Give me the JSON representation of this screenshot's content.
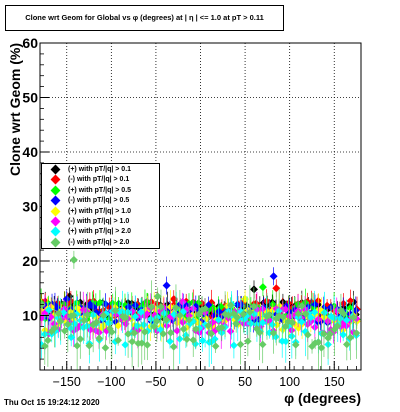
{
  "title": "Clone wrt Geom for Global vs φ (degrees) at | η | <= 1.0 at pT > 0.11",
  "footer": "Thu Oct 15 19:24:12 2020",
  "chart_data": {
    "type": "scatter",
    "title": "Clone wrt Geom for Global vs φ (degrees) at | η | <= 1.0 at pT > 0.11",
    "xlabel": "φ (degrees)",
    "ylabel": "Clone wrt Geom (%)",
    "xlim": [
      -180,
      180
    ],
    "ylim": [
      0,
      60
    ],
    "xticks": [
      -150,
      -100,
      -50,
      0,
      50,
      100,
      150
    ],
    "yticks": [
      0,
      10,
      20,
      30,
      40,
      50,
      60
    ],
    "grid": true,
    "legend_position": "left",
    "series": [
      {
        "name": "(+) with pT/|q| > 0.1",
        "color": "#000000",
        "level": 11.0,
        "spread": 1.5,
        "outliers": [
          [
            -147,
            13.5
          ],
          [
            -120,
            12.2
          ],
          [
            60,
            14.8
          ],
          [
            75,
            12.0
          ]
        ]
      },
      {
        "name": "(-) with pT/|q| > 0.1",
        "color": "#ff0000",
        "level": 11.2,
        "spread": 1.5,
        "outliers": [
          [
            -30,
            13.0
          ],
          [
            85,
            15.0
          ],
          [
            120,
            12.5
          ],
          [
            -100,
            12.0
          ]
        ]
      },
      {
        "name": "(+) with pT/|q| > 0.5",
        "color": "#00ff00",
        "level": 10.8,
        "spread": 1.8,
        "outliers": [
          [
            70,
            15.2
          ],
          [
            -60,
            12.5
          ]
        ]
      },
      {
        "name": "(-) with pT/|q| > 0.5",
        "color": "#0000ff",
        "level": 10.4,
        "spread": 1.8,
        "outliers": [
          [
            -38,
            15.5
          ],
          [
            82,
            17.2
          ],
          [
            -150,
            13.0
          ]
        ]
      },
      {
        "name": "(+) with pT/|q| > 1.0",
        "color": "#ffff00",
        "level": 9.5,
        "spread": 2.2,
        "outliers": [
          [
            50,
            13.0
          ]
        ]
      },
      {
        "name": "(-) with pT/|q| > 1.0",
        "color": "#ff00ff",
        "level": 9.0,
        "spread": 2.4,
        "outliers": [
          [
            -20,
            12.5
          ]
        ]
      },
      {
        "name": "(+) with pT/|q| > 2.0",
        "color": "#00ffff",
        "level": 8.0,
        "spread": 3.5,
        "outliers": [
          [
            35,
            12.0
          ],
          [
            -145,
            6.0
          ]
        ]
      },
      {
        "name": "(-) with pT/|q| > 2.0",
        "color": "#66cc66",
        "level": 8.0,
        "spread": 4.0,
        "outliers": [
          [
            -142,
            20.2
          ],
          [
            -48,
            13.5
          ],
          [
            40,
            8.5
          ]
        ]
      }
    ]
  }
}
